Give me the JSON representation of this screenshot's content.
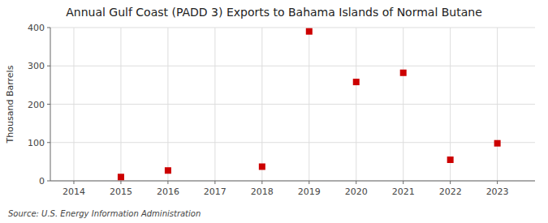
{
  "chart_data": {
    "type": "scatter",
    "title": "Annual Gulf Coast (PADD 3) Exports to Bahama Islands of Normal Butane",
    "ylabel": "Thousand Barrels",
    "source": "Source: U.S. Energy Information Administration",
    "x": [
      2015,
      2016,
      2018,
      2019,
      2020,
      2021,
      2022,
      2023
    ],
    "values": [
      10,
      27,
      37,
      390,
      258,
      282,
      55,
      98
    ],
    "xlim": [
      2013.5,
      2023.8
    ],
    "ylim": [
      0,
      400
    ],
    "xticks": [
      2014,
      2015,
      2016,
      2017,
      2018,
      2019,
      2020,
      2021,
      2022,
      2023
    ],
    "yticks": [
      0,
      100,
      200,
      300,
      400
    ],
    "color": "#cc0000",
    "marker": "square",
    "grid": true
  }
}
